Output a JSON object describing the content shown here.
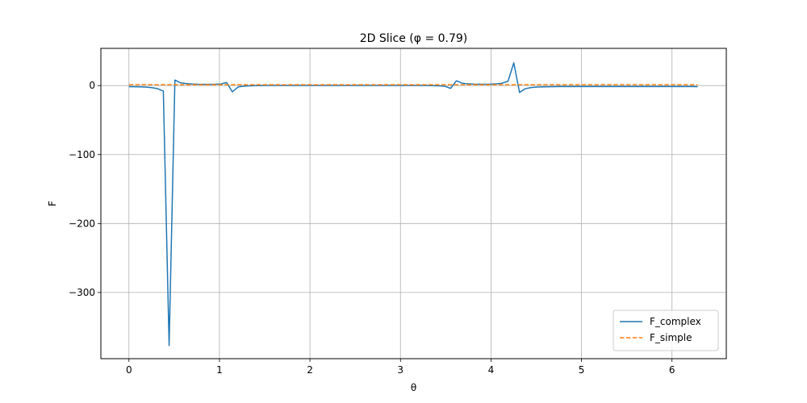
{
  "chart_data": {
    "type": "line",
    "title": "2D Slice (φ = 0.79)",
    "xlabel": "θ",
    "ylabel": "F",
    "xlim": [
      -0.31,
      6.6
    ],
    "ylim": [
      -396,
      54
    ],
    "xticks": [
      0,
      1,
      2,
      3,
      4,
      5,
      6
    ],
    "yticks": [
      0,
      -100,
      -200,
      -300
    ],
    "xtick_labels": [
      "0",
      "1",
      "2",
      "3",
      "4",
      "5",
      "6"
    ],
    "ytick_labels": [
      "0",
      "−100",
      "−200",
      "−300"
    ],
    "grid": true,
    "legend_position": "lower-right",
    "series": [
      {
        "name": "F_complex",
        "color": "#1f77b4",
        "style": "solid",
        "x": [
          0,
          0.064,
          0.127,
          0.19,
          0.254,
          0.317,
          0.38,
          0.444,
          0.508,
          0.571,
          0.635,
          0.698,
          0.762,
          0.825,
          0.889,
          0.952,
          1.016,
          1.079,
          1.142,
          1.206,
          1.27,
          1.333,
          1.396,
          1.46,
          1.523,
          1.587,
          1.65,
          1.714,
          1.777,
          1.84,
          1.904,
          1.968,
          2.031,
          2.094,
          2.158,
          2.221,
          2.285,
          2.348,
          2.412,
          2.475,
          2.539,
          2.602,
          2.666,
          2.729,
          2.793,
          2.856,
          2.92,
          2.983,
          3.046,
          3.11,
          3.173,
          3.237,
          3.3,
          3.364,
          3.427,
          3.491,
          3.554,
          3.618,
          3.681,
          3.745,
          3.808,
          3.871,
          3.935,
          3.998,
          4.062,
          4.125,
          4.189,
          4.252,
          4.316,
          4.379,
          4.443,
          4.506,
          4.57,
          4.633,
          4.697,
          4.76,
          4.823,
          4.887,
          4.95,
          5.014,
          5.077,
          5.141,
          5.204,
          5.268,
          5.331,
          5.395,
          5.458,
          5.521,
          5.585,
          5.648,
          5.712,
          5.775,
          5.839,
          5.902,
          5.966,
          6.029,
          6.093,
          6.156,
          6.22,
          6.283
        ],
        "y": [
          -1.5,
          -1.6,
          -1.8,
          -2.2,
          -3.0,
          -4.5,
          -8.0,
          -377.0,
          8.0,
          4.0,
          2.8,
          2.3,
          2.0,
          1.9,
          1.9,
          2.0,
          2.3,
          4.5,
          -9.0,
          -2.0,
          -0.8,
          -0.3,
          0.0,
          0.1,
          0.2,
          0.2,
          0.2,
          0.2,
          0.2,
          0.2,
          0.2,
          0.2,
          0.2,
          0.2,
          0.2,
          0.2,
          0.2,
          0.2,
          0.2,
          0.2,
          0.2,
          0.2,
          0.2,
          0.2,
          0.2,
          0.2,
          0.2,
          0.2,
          0.2,
          0.2,
          0.2,
          0.2,
          0.1,
          0.0,
          -0.3,
          -1.0,
          -4.0,
          7.0,
          3.5,
          2.5,
          2.1,
          2.0,
          2.0,
          2.2,
          2.6,
          3.5,
          6.5,
          33.0,
          -10.0,
          -4.5,
          -2.8,
          -2.1,
          -1.8,
          -1.6,
          -1.5,
          -1.4,
          -1.4,
          -1.4,
          -1.4,
          -1.4,
          -1.4,
          -1.4,
          -1.4,
          -1.4,
          -1.4,
          -1.4,
          -1.4,
          -1.4,
          -1.4,
          -1.4,
          -1.4,
          -1.4,
          -1.4,
          -1.4,
          -1.4,
          -1.4,
          -1.4,
          -1.4,
          -1.4,
          -1.5
        ]
      },
      {
        "name": "F_simple",
        "color": "#ff7f0e",
        "style": "dashed",
        "x": [
          0,
          6.283
        ],
        "y": [
          1.3,
          1.3
        ]
      }
    ]
  }
}
